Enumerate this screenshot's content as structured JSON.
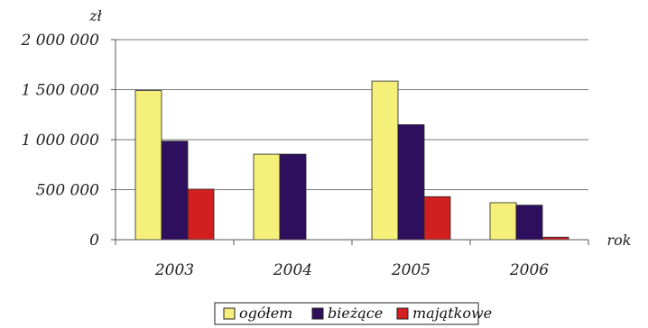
{
  "chart_data": {
    "type": "bar",
    "title": "",
    "xlabel": "rok",
    "ylabel": "zł",
    "categories": [
      "2003",
      "2004",
      "2005",
      "2006"
    ],
    "ylim": [
      0,
      2000000
    ],
    "yticks": [
      {
        "value": 0,
        "label": "0"
      },
      {
        "value": 500000,
        "label": "500 000"
      },
      {
        "value": 1000000,
        "label": "1 000 000"
      },
      {
        "value": 1500000,
        "label": "1 500 000"
      },
      {
        "value": 2000000,
        "label": "2 000 000"
      }
    ],
    "grid": true,
    "legend_position": "bottom",
    "series": [
      {
        "name": "ogółem",
        "color": "#f5f07a",
        "values": [
          1490000,
          855000,
          1585000,
          370000
        ]
      },
      {
        "name": "bieżące",
        "color": "#2e0f5e",
        "values": [
          985000,
          855000,
          1150000,
          345000
        ]
      },
      {
        "name": "majątkowe",
        "color": "#d21f1f",
        "values": [
          505000,
          0,
          430000,
          25000
        ]
      }
    ]
  }
}
